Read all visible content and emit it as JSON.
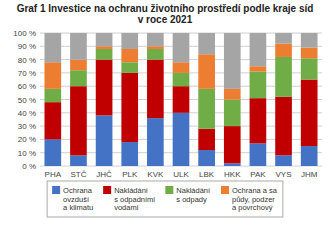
{
  "chart_data": {
    "type": "bar",
    "stacked": true,
    "title": "Graf 1 Investice na ochranu životního prostředí podle kraje síd\nv roce 2021",
    "categories": [
      "PHA",
      "STČ",
      "JHČ",
      "PLK",
      "KVK",
      "ULK",
      "LBK",
      "HKK",
      "PAK",
      "VYS",
      "JHM"
    ],
    "series": [
      {
        "name": "Ochrana\novzduší\na klimatu",
        "color": "#4472C4",
        "values": [
          20,
          8,
          38,
          18,
          36,
          40,
          12,
          2,
          17,
          8,
          15
        ]
      },
      {
        "name": "Nakládání\ns odpadními\nvodami",
        "color": "#C00000",
        "values": [
          28,
          52,
          42,
          52,
          44,
          20,
          16,
          28,
          34,
          44,
          50
        ]
      },
      {
        "name": "Nakládání\ns odpady",
        "color": "#70AD47",
        "values": [
          10,
          12,
          8,
          8,
          8,
          10,
          30,
          20,
          20,
          30,
          16
        ]
      },
      {
        "name": "Ochrana a sa\npůdy, podzer\na povrchový",
        "color": "#ED7D31",
        "values": [
          20,
          8,
          2,
          10,
          2,
          8,
          26,
          8,
          4,
          10,
          8
        ]
      },
      {
        "color": "#A5A5A5",
        "values": [
          22,
          20,
          10,
          12,
          10,
          22,
          16,
          42,
          25,
          8,
          11
        ]
      }
    ],
    "ylim": [
      0,
      100
    ],
    "yticks": [
      {
        "value": 0,
        "label": "0 %"
      },
      {
        "value": 10,
        "label": "10 %"
      },
      {
        "value": 20,
        "label": "20 %"
      },
      {
        "value": 30,
        "label": "30 %"
      },
      {
        "value": 40,
        "label": "40 %"
      },
      {
        "value": 50,
        "label": "50 %"
      },
      {
        "value": 60,
        "label": "60 %"
      },
      {
        "value": 70,
        "label": "70 %"
      },
      {
        "value": 80,
        "label": "80 %"
      },
      {
        "value": 90,
        "label": "90 %"
      },
      {
        "value": 100,
        "label": "100 %"
      }
    ],
    "grid": true,
    "legend": "bottom"
  }
}
